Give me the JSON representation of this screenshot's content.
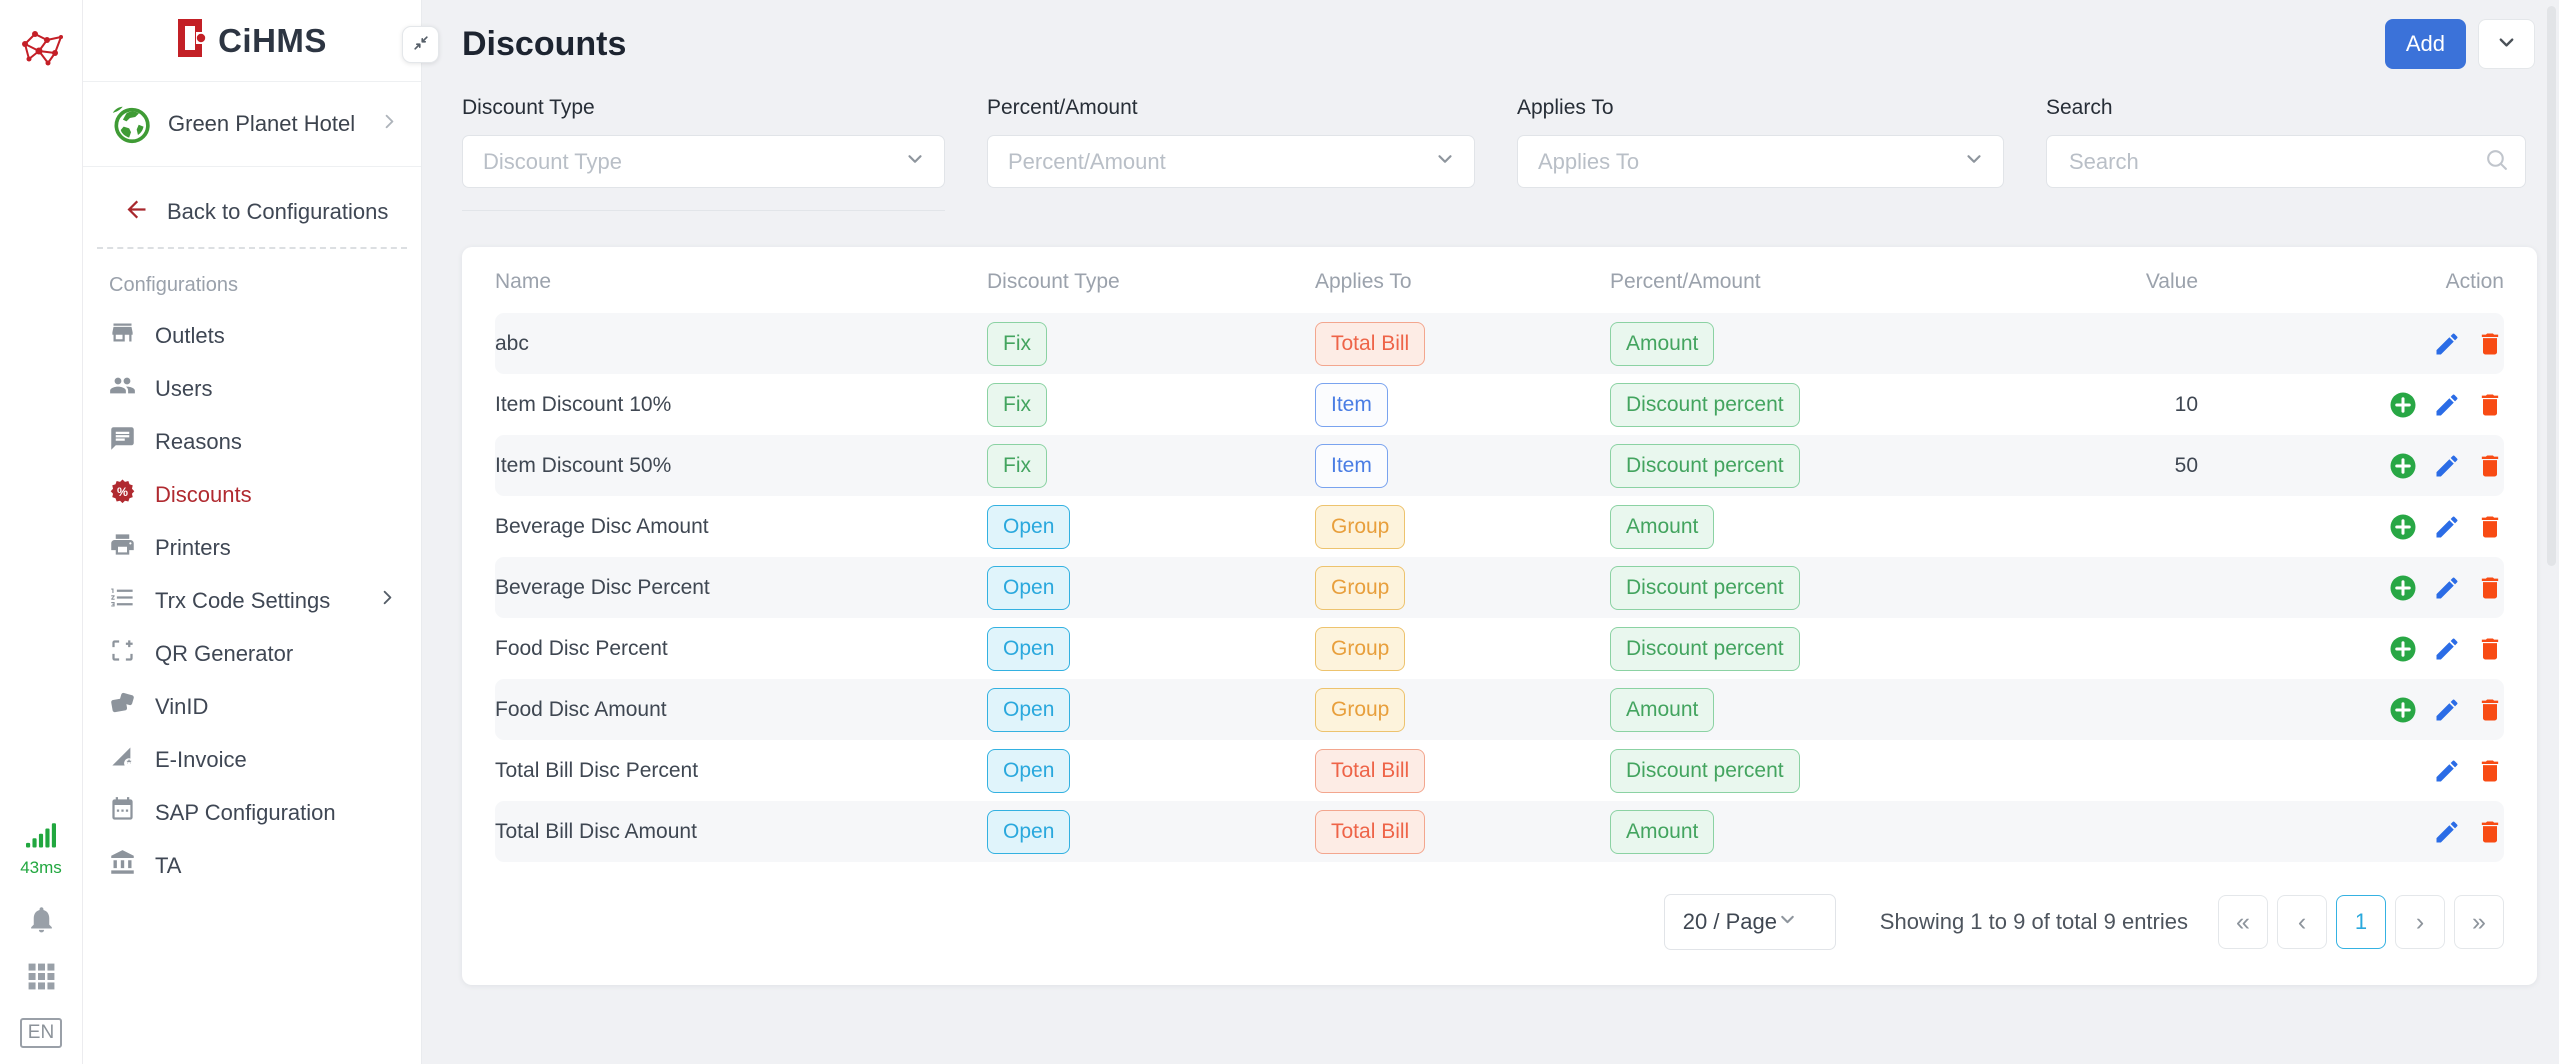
{
  "brand": {
    "name": "CiHMS"
  },
  "rail": {
    "latency": "43ms",
    "language": "EN",
    "icons": [
      "network-icon",
      "signal-bars-icon",
      "bell-icon",
      "apps-grid-icon"
    ]
  },
  "sidebar": {
    "hotel": "Green Planet Hotel",
    "back_label": "Back to Configurations",
    "section_label": "Configurations",
    "items": [
      {
        "label": "Outlets",
        "icon": "store"
      },
      {
        "label": "Users",
        "icon": "users"
      },
      {
        "label": "Reasons",
        "icon": "comment"
      },
      {
        "label": "Discounts",
        "icon": "discount",
        "active": true
      },
      {
        "label": "Printers",
        "icon": "printer"
      },
      {
        "label": "Trx Code Settings",
        "icon": "list-numbered",
        "submenu": true
      },
      {
        "label": "QR Generator",
        "icon": "qr-add"
      },
      {
        "label": "VinID",
        "icon": "cards"
      },
      {
        "label": "E-Invoice",
        "icon": "invoice-gear"
      },
      {
        "label": "SAP Configuration",
        "icon": "calendar"
      },
      {
        "label": "TA",
        "icon": "bank"
      }
    ]
  },
  "header": {
    "title": "Discounts",
    "add_label": "Add"
  },
  "filters": [
    {
      "label": "Discount Type",
      "placeholder": "Discount Type"
    },
    {
      "label": "Percent/Amount",
      "placeholder": "Percent/Amount"
    },
    {
      "label": "Applies To",
      "placeholder": "Applies To"
    },
    {
      "label": "Search",
      "placeholder": "Search"
    }
  ],
  "table": {
    "columns": [
      "Name",
      "Discount Type",
      "Applies To",
      "Percent/Amount",
      "Value",
      "Action"
    ],
    "badge_styles": {
      "Fix": "green",
      "Open": "cyan",
      "Item": "blue",
      "Group": "yellow",
      "Total Bill": "red",
      "Amount": "green",
      "Discount percent": "green"
    },
    "rows": [
      {
        "name": "abc",
        "discount_type": "Fix",
        "applies_to": "Total Bill",
        "percent_amount": "Amount",
        "value": "",
        "actions": [
          "edit",
          "delete"
        ]
      },
      {
        "name": "Item Discount 10%",
        "discount_type": "Fix",
        "applies_to": "Item",
        "percent_amount": "Discount percent",
        "value": "10",
        "actions": [
          "add",
          "edit",
          "delete"
        ]
      },
      {
        "name": "Item Discount 50%",
        "discount_type": "Fix",
        "applies_to": "Item",
        "percent_amount": "Discount percent",
        "value": "50",
        "actions": [
          "add",
          "edit",
          "delete"
        ]
      },
      {
        "name": "Beverage Disc Amount",
        "discount_type": "Open",
        "applies_to": "Group",
        "percent_amount": "Amount",
        "value": "",
        "actions": [
          "add",
          "edit",
          "delete"
        ]
      },
      {
        "name": "Beverage Disc Percent",
        "discount_type": "Open",
        "applies_to": "Group",
        "percent_amount": "Discount percent",
        "value": "",
        "actions": [
          "add",
          "edit",
          "delete"
        ]
      },
      {
        "name": "Food Disc Percent",
        "discount_type": "Open",
        "applies_to": "Group",
        "percent_amount": "Discount percent",
        "value": "",
        "actions": [
          "add",
          "edit",
          "delete"
        ]
      },
      {
        "name": "Food Disc Amount",
        "discount_type": "Open",
        "applies_to": "Group",
        "percent_amount": "Amount",
        "value": "",
        "actions": [
          "add",
          "edit",
          "delete"
        ]
      },
      {
        "name": "Total Bill Disc Percent",
        "discount_type": "Open",
        "applies_to": "Total Bill",
        "percent_amount": "Discount percent",
        "value": "",
        "actions": [
          "edit",
          "delete"
        ]
      },
      {
        "name": "Total Bill Disc Amount",
        "discount_type": "Open",
        "applies_to": "Total Bill",
        "percent_amount": "Amount",
        "value": "",
        "actions": [
          "edit",
          "delete"
        ]
      }
    ]
  },
  "pagination": {
    "page_size": "20 / Page",
    "summary": "Showing 1 to 9 of total 9 entries",
    "active_page": "1",
    "buttons": [
      {
        "label": "«",
        "name": "first-page-button"
      },
      {
        "label": "‹",
        "name": "prev-page-button"
      },
      {
        "label": "1",
        "name": "page-1-button",
        "active": true
      },
      {
        "label": "›",
        "name": "next-page-button"
      },
      {
        "label": "»",
        "name": "last-page-button"
      }
    ]
  },
  "colors": {
    "accent_blue": "#3b72d9",
    "active_red": "#b02a30",
    "badge_green": "#43a45f",
    "badge_cyan": "#2aa8dd",
    "badge_blue": "#4a7de4",
    "badge_yellow": "#e89f3c",
    "badge_red": "#ee6448",
    "action_add": "#28a745",
    "action_edit": "#2b6ce6",
    "action_delete": "#f84b14",
    "latency_green": "#21a73f"
  }
}
